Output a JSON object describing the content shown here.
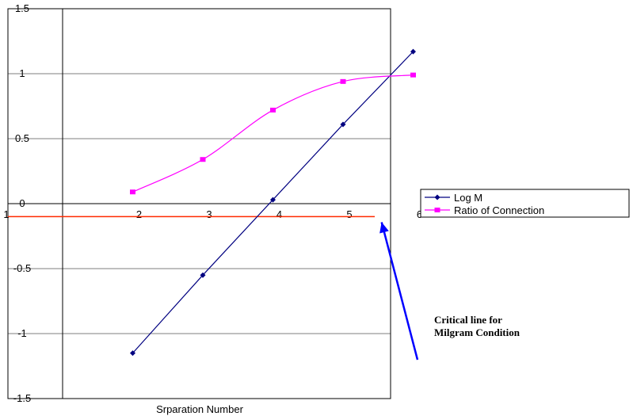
{
  "chart_data": {
    "type": "line",
    "x": [
      2,
      3,
      4,
      5,
      6
    ],
    "xlabel": "Srparation Number",
    "ylabel": "",
    "title": "",
    "x_tick_labels": [
      "1",
      "2",
      "3",
      "4",
      "5",
      "6"
    ],
    "y_tick_labels": [
      "1.5",
      "1",
      "0.5",
      "0",
      "-0.5",
      "-1",
      "-1.5"
    ],
    "ylim": [
      -1.5,
      1.5
    ],
    "grid": "horizontal",
    "legend_position": "right",
    "series": [
      {
        "name": "Log M",
        "color": "#000080",
        "marker": "diamond",
        "smooth": false,
        "values": [
          -1.15,
          -0.55,
          0.03,
          0.61,
          1.17
        ]
      },
      {
        "name": "Ratio of Connection",
        "color": "#ff00ff",
        "marker": "square",
        "smooth": true,
        "values": [
          0.09,
          0.34,
          0.72,
          0.94,
          0.99
        ]
      }
    ],
    "critical_line": {
      "y": -0.1,
      "color": "#ff2a00"
    },
    "annotation": {
      "lines": [
        "Critical line for",
        "Milgram Condition"
      ],
      "arrow_color": "#0000ff",
      "arrow_target_x": 5.55
    }
  }
}
